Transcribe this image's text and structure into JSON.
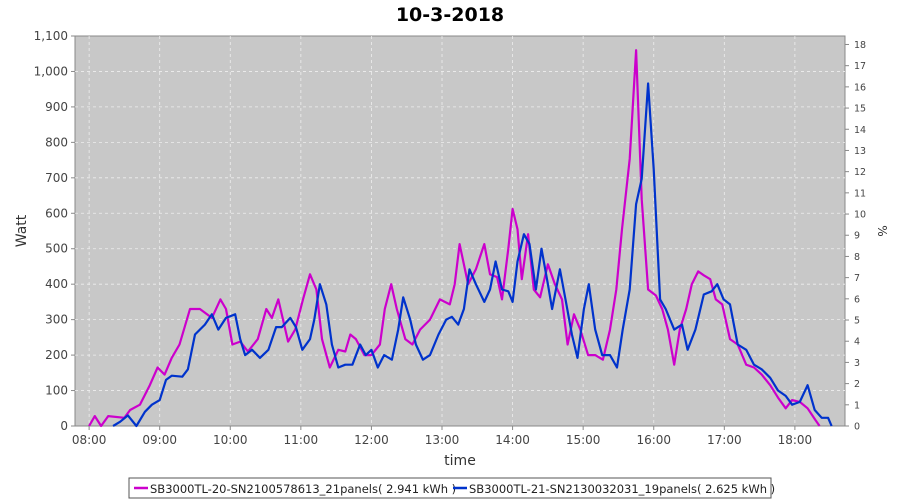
{
  "chart_data": {
    "type": "line",
    "title": "10-3-2018",
    "xlabel": "time",
    "ylabel": "Watt",
    "y2label": "%",
    "xlim": [
      7.8,
      18.71
    ],
    "ylim": [
      0,
      1100
    ],
    "y2lim": [
      0,
      18.4
    ],
    "grid": true,
    "legend_position": "bottom",
    "x_ticks": [
      "08:00",
      "09:00",
      "10:00",
      "11:00",
      "12:00",
      "13:00",
      "14:00",
      "15:00",
      "16:00",
      "17:00",
      "18:00"
    ],
    "x_tick_values": [
      8,
      9,
      10,
      11,
      12,
      13,
      14,
      15,
      16,
      17,
      18
    ],
    "y_ticks": [
      "0",
      "100",
      "200",
      "300",
      "400",
      "500",
      "600",
      "700",
      "800",
      "900",
      "1,000",
      "1,100"
    ],
    "y_tick_values": [
      0,
      100,
      200,
      300,
      400,
      500,
      600,
      700,
      800,
      900,
      1000,
      1100
    ],
    "y2_ticks": [
      "0",
      "1",
      "2",
      "3",
      "4",
      "5",
      "6",
      "7",
      "8",
      "9",
      "10",
      "11",
      "12",
      "13",
      "14",
      "15",
      "16",
      "17",
      "18"
    ],
    "series": [
      {
        "name": "SB3000TL-20-SN2100578613_21panels( 2.941 kWh )",
        "color": "#cc00cc",
        "x": [
          8.0,
          8.08,
          8.17,
          8.27,
          8.5,
          8.58,
          8.72,
          8.86,
          8.97,
          9.07,
          9.17,
          9.28,
          9.43,
          9.57,
          9.74,
          9.86,
          9.94,
          10.03,
          10.14,
          10.25,
          10.39,
          10.51,
          10.59,
          10.68,
          10.82,
          10.92,
          11.03,
          11.13,
          11.22,
          11.3,
          11.41,
          11.53,
          11.63,
          11.7,
          11.78,
          11.9,
          12.0,
          12.12,
          12.19,
          12.28,
          12.36,
          12.48,
          12.58,
          12.69,
          12.83,
          12.97,
          13.11,
          13.18,
          13.25,
          13.37,
          13.48,
          13.6,
          13.68,
          13.78,
          13.85,
          13.94,
          14.0,
          14.07,
          14.13,
          14.22,
          14.3,
          14.39,
          14.5,
          14.6,
          14.7,
          14.78,
          14.87,
          14.96,
          15.07,
          15.17,
          15.28,
          15.38,
          15.47,
          15.55,
          15.66,
          15.75,
          15.83,
          15.92,
          16.03,
          16.12,
          16.2,
          16.29,
          16.37,
          16.46,
          16.54,
          16.63,
          16.71,
          16.8,
          16.88,
          16.97,
          17.08,
          17.19,
          17.31,
          17.42,
          17.53,
          17.65,
          17.76,
          17.87,
          17.96,
          18.07,
          18.18,
          18.29,
          18.35
        ],
        "y": [
          0,
          28,
          0,
          28,
          23,
          45,
          60,
          115,
          165,
          145,
          192,
          230,
          330,
          330,
          305,
          357,
          330,
          230,
          238,
          210,
          245,
          330,
          305,
          357,
          238,
          272,
          357,
          428,
          385,
          245,
          165,
          215,
          210,
          258,
          245,
          200,
          200,
          230,
          330,
          400,
          330,
          245,
          230,
          272,
          300,
          357,
          343,
          400,
          513,
          400,
          442,
          513,
          428,
          420,
          357,
          500,
          612,
          555,
          414,
          541,
          385,
          363,
          456,
          400,
          357,
          230,
          315,
          272,
          200,
          200,
          187,
          272,
          385,
          555,
          753,
          1060,
          640,
          385,
          368,
          330,
          272,
          173,
          272,
          330,
          400,
          436,
          425,
          414,
          357,
          343,
          245,
          230,
          173,
          165,
          145,
          115,
          80,
          50,
          73,
          68,
          50,
          17,
          0
        ]
      },
      {
        "name": "SB3000TL-21-SN2130032031_19panels( 2.625 kWh )",
        "color": "#0033cc",
        "x": [
          8.34,
          8.44,
          8.55,
          8.67,
          8.79,
          8.89,
          9.0,
          9.09,
          9.17,
          9.32,
          9.4,
          9.5,
          9.64,
          9.74,
          9.83,
          9.94,
          10.07,
          10.14,
          10.21,
          10.31,
          10.42,
          10.54,
          10.65,
          10.73,
          10.85,
          10.93,
          11.02,
          11.13,
          11.19,
          11.27,
          11.36,
          11.44,
          11.53,
          11.63,
          11.73,
          11.84,
          11.92,
          12.0,
          12.09,
          12.18,
          12.29,
          12.38,
          12.45,
          12.55,
          12.63,
          12.73,
          12.83,
          12.95,
          13.06,
          13.14,
          13.23,
          13.31,
          13.39,
          13.48,
          13.6,
          13.68,
          13.76,
          13.85,
          13.94,
          14.0,
          14.07,
          14.16,
          14.24,
          14.33,
          14.41,
          14.5,
          14.56,
          14.67,
          14.75,
          14.84,
          14.92,
          15.01,
          15.08,
          15.17,
          15.27,
          15.38,
          15.48,
          15.56,
          15.66,
          15.75,
          15.83,
          15.92,
          16.0,
          16.09,
          16.17,
          16.29,
          16.4,
          16.48,
          16.59,
          16.71,
          16.82,
          16.9,
          16.99,
          17.08,
          17.19,
          17.31,
          17.42,
          17.53,
          17.65,
          17.76,
          17.87,
          17.96,
          18.07,
          18.18,
          18.28,
          18.38,
          18.47,
          18.52
        ],
        "y": [
          0,
          12,
          30,
          0,
          40,
          60,
          73,
          130,
          142,
          139,
          160,
          258,
          286,
          315,
          272,
          305,
          315,
          245,
          200,
          215,
          192,
          215,
          279,
          279,
          305,
          279,
          215,
          245,
          300,
          400,
          343,
          230,
          165,
          173,
          173,
          230,
          200,
          215,
          165,
          200,
          187,
          272,
          363,
          300,
          230,
          187,
          200,
          258,
          300,
          308,
          286,
          330,
          442,
          400,
          350,
          385,
          464,
          385,
          380,
          350,
          464,
          541,
          513,
          385,
          500,
          400,
          330,
          442,
          357,
          258,
          192,
          330,
          400,
          272,
          200,
          200,
          165,
          272,
          385,
          626,
          697,
          966,
          725,
          357,
          330,
          272,
          286,
          215,
          272,
          371,
          380,
          400,
          357,
          343,
          230,
          215,
          173,
          160,
          136,
          100,
          85,
          60,
          68,
          115,
          45,
          23,
          23,
          0
        ]
      }
    ]
  }
}
